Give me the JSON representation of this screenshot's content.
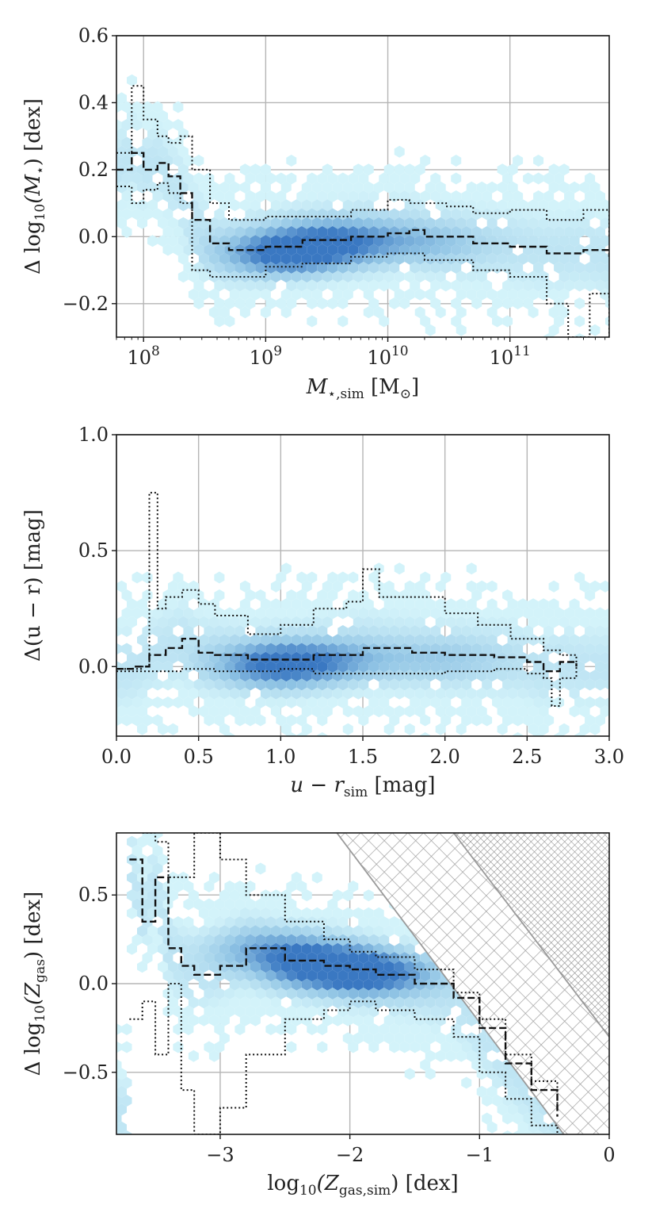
{
  "colors": {
    "hex_light": "#d3f3fa",
    "hex_mid": "#8fc3e4",
    "hex_dark": "#3a78c2",
    "median_line": "#111111",
    "grid": "#b5b5b5",
    "hatch": "#9a9a9a"
  },
  "chart_data": [
    {
      "type": "hexbin",
      "title": "",
      "xlabel": "M_⋆,sim [M_⊙]",
      "xlabel_parts": [
        "M",
        "⋆,sim",
        " [M",
        "⊙",
        "]"
      ],
      "ylabel": "Δ log10(M⋆) [dex]",
      "ylabel_parts": [
        "Δ log",
        "10",
        "(M",
        "⋆",
        ") [dex]"
      ],
      "xscale": "log",
      "xlim": [
        60000000,
        650000000000
      ],
      "ylim": [
        -0.3,
        0.6
      ],
      "xticks": [
        100000000,
        1000000000,
        10000000000,
        100000000000
      ],
      "xtick_labels": [
        "10^8",
        "10^9",
        "10^10",
        "10^11"
      ],
      "xtick_base": "10",
      "xtick_exponents": [
        "8",
        "9",
        "10",
        "11"
      ],
      "yticks": [
        -0.2,
        0.0,
        0.2,
        0.4,
        0.6
      ],
      "ytick_labels": [
        "−0.2",
        "0.0",
        "0.2",
        "0.4",
        "0.6"
      ],
      "grid": true,
      "density_blobs": [
        {
          "x": 1500000000,
          "y": -0.05,
          "weight": 1.0
        },
        {
          "x": 4000000000,
          "y": -0.01,
          "weight": 0.7
        },
        {
          "x": 20000000000,
          "y": -0.02,
          "weight": 0.35
        }
      ],
      "series": [
        {
          "name": "median",
          "style": "dashed",
          "x": [
            60000000,
            80000000,
            100000000,
            130000000,
            160000000,
            200000000,
            250000000,
            350000000,
            500000000,
            1000000000,
            2000000000,
            5000000000,
            10000000000,
            15000000000,
            20000000000,
            50000000000,
            100000000000,
            200000000000,
            400000000000,
            650000000000
          ],
          "y": [
            0.2,
            0.25,
            0.2,
            0.22,
            0.18,
            0.13,
            0.05,
            -0.02,
            -0.04,
            -0.03,
            -0.01,
            0.0,
            0.01,
            0.02,
            0.0,
            -0.02,
            -0.03,
            -0.05,
            -0.04,
            -0.06
          ]
        },
        {
          "name": "upper",
          "style": "dotted",
          "x": [
            60000000,
            80000000,
            100000000,
            130000000,
            160000000,
            200000000,
            250000000,
            350000000,
            500000000,
            1000000000,
            2000000000,
            5000000000,
            10000000000,
            15000000000,
            30000000000,
            50000000000,
            100000000000,
            200000000000,
            400000000000,
            650000000000
          ],
          "y": [
            0.25,
            0.45,
            0.35,
            0.3,
            0.28,
            0.3,
            0.2,
            0.1,
            0.05,
            0.06,
            0.06,
            0.08,
            0.11,
            0.1,
            0.09,
            0.07,
            0.08,
            0.05,
            0.08,
            0.0
          ]
        },
        {
          "name": "lower",
          "style": "dotted",
          "x": [
            60000000,
            80000000,
            100000000,
            130000000,
            160000000,
            200000000,
            250000000,
            350000000,
            500000000,
            1000000000,
            2000000000,
            5000000000,
            10000000000,
            20000000000,
            50000000000,
            100000000000,
            200000000000,
            300000000000,
            450000000000,
            650000000000
          ],
          "y": [
            0.15,
            0.1,
            0.14,
            0.16,
            0.13,
            0.1,
            -0.1,
            -0.12,
            -0.12,
            -0.09,
            -0.08,
            -0.06,
            -0.05,
            -0.07,
            -0.1,
            -0.12,
            -0.2,
            -0.3,
            -0.17,
            -0.3
          ]
        }
      ]
    },
    {
      "type": "hexbin",
      "title": "",
      "xlabel": "u − r_sim [mag]",
      "xlabel_parts": [
        "u − r",
        "sim",
        " [mag]"
      ],
      "ylabel": "Δ(u − r) [mag]",
      "ylabel_parts": [
        "Δ(u − r) [mag]"
      ],
      "xscale": "linear",
      "xlim": [
        0.0,
        3.0
      ],
      "ylim": [
        -0.3,
        1.0
      ],
      "xticks": [
        0.0,
        0.5,
        1.0,
        1.5,
        2.0,
        2.5,
        3.0
      ],
      "xtick_labels": [
        "0.0",
        "0.5",
        "1.0",
        "1.5",
        "2.0",
        "2.5",
        "3.0"
      ],
      "yticks": [
        0.0,
        0.5,
        1.0
      ],
      "ytick_labels": [
        "0.0",
        "0.5",
        "1.0"
      ],
      "grid": true,
      "density_blobs": [
        {
          "x": 1.0,
          "y": 0.01,
          "weight": 1.0
        },
        {
          "x": 1.4,
          "y": 0.03,
          "weight": 0.35
        },
        {
          "x": 2.0,
          "y": 0.03,
          "weight": 0.25
        }
      ],
      "series": [
        {
          "name": "median",
          "style": "dashed",
          "x": [
            0.0,
            0.1,
            0.2,
            0.3,
            0.4,
            0.5,
            0.6,
            0.8,
            1.0,
            1.2,
            1.5,
            1.8,
            2.0,
            2.3,
            2.5,
            2.6,
            2.7,
            2.8
          ],
          "y": [
            -0.01,
            0.0,
            0.05,
            0.08,
            0.12,
            0.06,
            0.05,
            0.03,
            0.03,
            0.05,
            0.08,
            0.06,
            0.05,
            0.04,
            0.02,
            -0.02,
            0.02,
            0.0
          ]
        },
        {
          "name": "upper",
          "style": "dotted",
          "x": [
            0.0,
            0.15,
            0.2,
            0.25,
            0.3,
            0.4,
            0.5,
            0.6,
            0.8,
            1.0,
            1.2,
            1.4,
            1.5,
            1.6,
            1.8,
            2.0,
            2.2,
            2.4,
            2.6,
            2.7,
            2.8
          ],
          "y": [
            -0.01,
            0.0,
            0.75,
            0.25,
            0.3,
            0.33,
            0.27,
            0.22,
            0.14,
            0.18,
            0.25,
            0.28,
            0.42,
            0.3,
            0.3,
            0.23,
            0.18,
            0.12,
            0.07,
            0.05,
            0.0
          ]
        },
        {
          "name": "lower",
          "style": "dotted",
          "x": [
            0.0,
            0.2,
            0.4,
            0.6,
            0.8,
            1.0,
            1.2,
            1.5,
            2.0,
            2.3,
            2.5,
            2.6,
            2.65,
            2.7,
            2.8
          ],
          "y": [
            -0.02,
            -0.02,
            -0.01,
            -0.02,
            -0.02,
            -0.01,
            -0.03,
            -0.03,
            -0.02,
            -0.01,
            -0.03,
            -0.05,
            -0.17,
            -0.05,
            0.0
          ]
        }
      ]
    },
    {
      "type": "hexbin",
      "title": "",
      "xlabel": "log10(Z_gas,sim) [dex]",
      "xlabel_parts": [
        "log",
        "10",
        "(Z",
        "gas,sim",
        ") [dex]"
      ],
      "ylabel": "Δ log10(Z_gas) [dex]",
      "ylabel_parts": [
        "Δ log",
        "10",
        "(Z",
        "gas",
        ") [dex]"
      ],
      "xscale": "linear",
      "xlim": [
        -3.8,
        0.0
      ],
      "ylim": [
        -0.85,
        0.85
      ],
      "xticks": [
        -3,
        -2,
        -1,
        0
      ],
      "xtick_labels": [
        "−3",
        "−2",
        "−1",
        "0"
      ],
      "yticks": [
        -0.5,
        0.0,
        0.5
      ],
      "ytick_labels": [
        "−0.5",
        "0.0",
        "0.5"
      ],
      "grid": true,
      "hatched_regions": [
        {
          "name": "excluded-region-1",
          "boundary": {
            "x1": -2.1,
            "y1": 0.85,
            "x2": -0.35,
            "y2": -0.85
          }
        },
        {
          "name": "excluded-region-2",
          "boundary": {
            "x1": -1.2,
            "y1": 0.85,
            "x2": 0.0,
            "y2": -0.3
          }
        }
      ],
      "density_blobs": [
        {
          "x": -2.2,
          "y": 0.1,
          "weight": 1.0
        },
        {
          "x": -1.8,
          "y": 0.05,
          "weight": 0.8
        },
        {
          "x": -2.6,
          "y": 0.2,
          "weight": 0.5
        }
      ],
      "series": [
        {
          "name": "median",
          "style": "dashed",
          "x": [
            -3.7,
            -3.6,
            -3.5,
            -3.4,
            -3.3,
            -3.2,
            -3.0,
            -2.8,
            -2.5,
            -2.2,
            -2.0,
            -1.8,
            -1.5,
            -1.2,
            -1.0,
            -0.8,
            -0.6,
            -0.4
          ],
          "y": [
            0.7,
            0.35,
            0.6,
            0.2,
            0.1,
            0.05,
            0.1,
            0.2,
            0.13,
            0.1,
            0.08,
            0.05,
            0.0,
            -0.08,
            -0.25,
            -0.45,
            -0.6,
            -0.75
          ]
        },
        {
          "name": "upper",
          "style": "dotted",
          "x": [
            -3.6,
            -3.5,
            -3.4,
            -3.2,
            -3.0,
            -2.8,
            -2.5,
            -2.2,
            -2.0,
            -1.8,
            -1.5,
            -1.2,
            -1.0,
            -0.8,
            -0.6,
            -0.4
          ],
          "y": [
            0.85,
            0.8,
            0.6,
            0.85,
            0.7,
            0.5,
            0.35,
            0.25,
            0.18,
            0.15,
            0.08,
            -0.05,
            -0.2,
            -0.4,
            -0.55,
            -0.7
          ]
        },
        {
          "name": "lower",
          "style": "dotted",
          "x": [
            -3.7,
            -3.6,
            -3.5,
            -3.4,
            -3.3,
            -3.2,
            -3.0,
            -2.8,
            -2.5,
            -2.2,
            -2.0,
            -1.8,
            -1.5,
            -1.2,
            -1.0,
            -0.8,
            -0.6,
            -0.4
          ],
          "y": [
            -0.2,
            -0.1,
            -0.4,
            0.0,
            -0.6,
            -0.85,
            -0.7,
            -0.4,
            -0.2,
            -0.15,
            -0.1,
            -0.15,
            -0.2,
            -0.3,
            -0.5,
            -0.65,
            -0.8,
            -0.85
          ]
        }
      ]
    }
  ]
}
